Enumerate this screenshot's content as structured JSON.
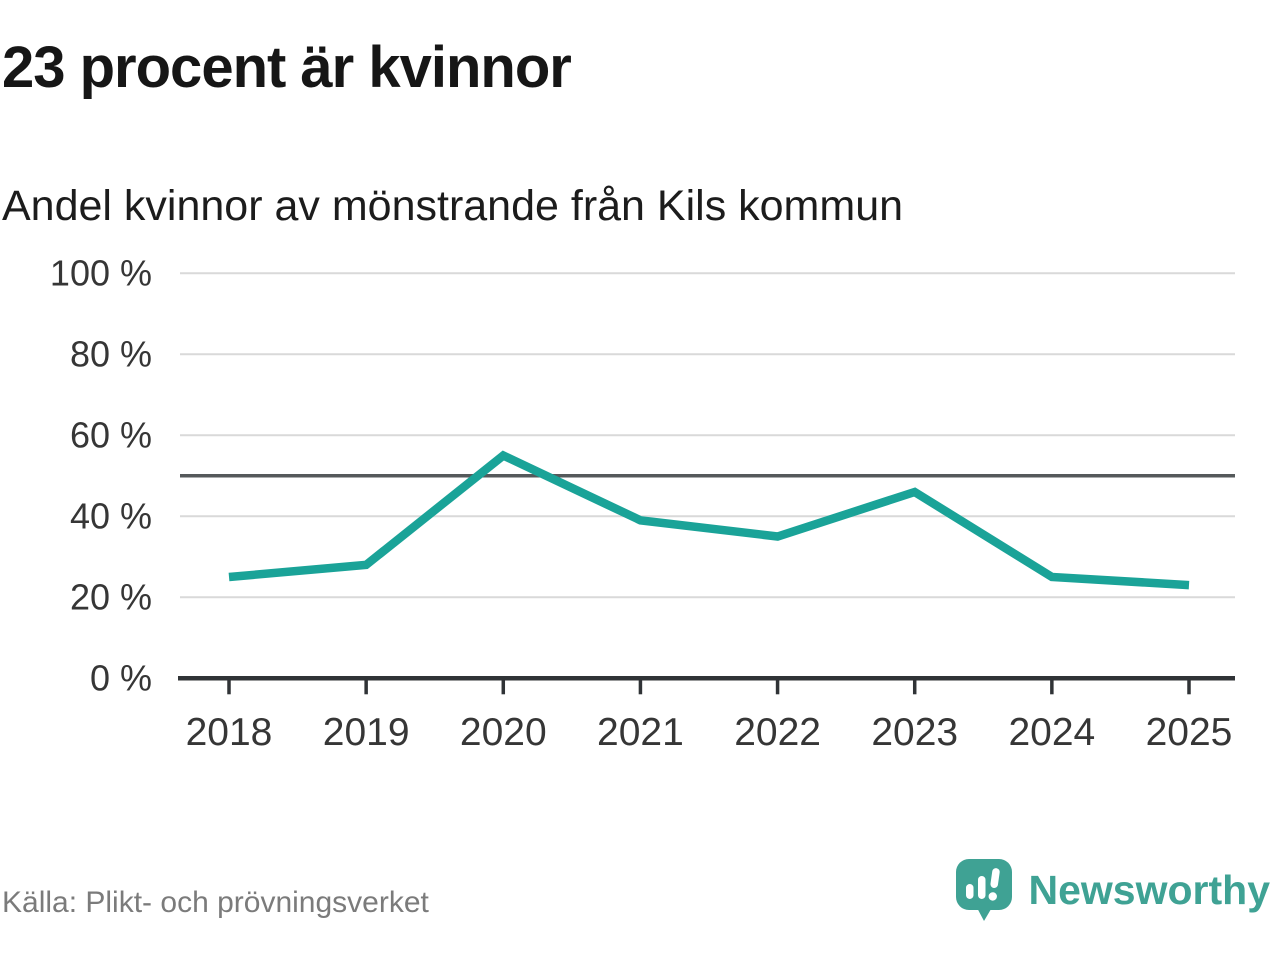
{
  "header": {
    "title": "23 procent är kvinnor",
    "subtitle": "Andel kvinnor av mönstrande från Kils kommun"
  },
  "chart_data": {
    "type": "line",
    "title": "23 procent är kvinnor",
    "subtitle": "Andel kvinnor av mönstrande från Kils kommun",
    "x": [
      2018,
      2019,
      2020,
      2021,
      2022,
      2023,
      2024,
      2025
    ],
    "series": [
      {
        "name": "Andel kvinnor av mönstrande",
        "values": [
          25,
          28,
          55,
          39,
          35,
          46,
          25,
          23
        ],
        "color": "#1aa398"
      }
    ],
    "unit": "%",
    "ylim": [
      0,
      100
    ],
    "yticks": [
      0,
      20,
      40,
      60,
      80,
      100
    ],
    "ytick_labels": [
      "0 %",
      "20 %",
      "40 %",
      "60 %",
      "80 %",
      "100 %"
    ],
    "reference_line": {
      "value": 50
    },
    "grid": "horizontal",
    "legend": "none"
  },
  "footer": {
    "source": "Källa: Plikt- och prövningsverket",
    "brand_name": "Newsworthy"
  },
  "colors": {
    "line": "#1aa398",
    "grid": "#d9d9d9",
    "reference": "#55595b",
    "axis": "#303336",
    "axis_text": "#363636",
    "title_text": "#161616",
    "source_text": "#7b7b7b",
    "brand_teal": "#3fa294",
    "background": "#ffffff"
  }
}
